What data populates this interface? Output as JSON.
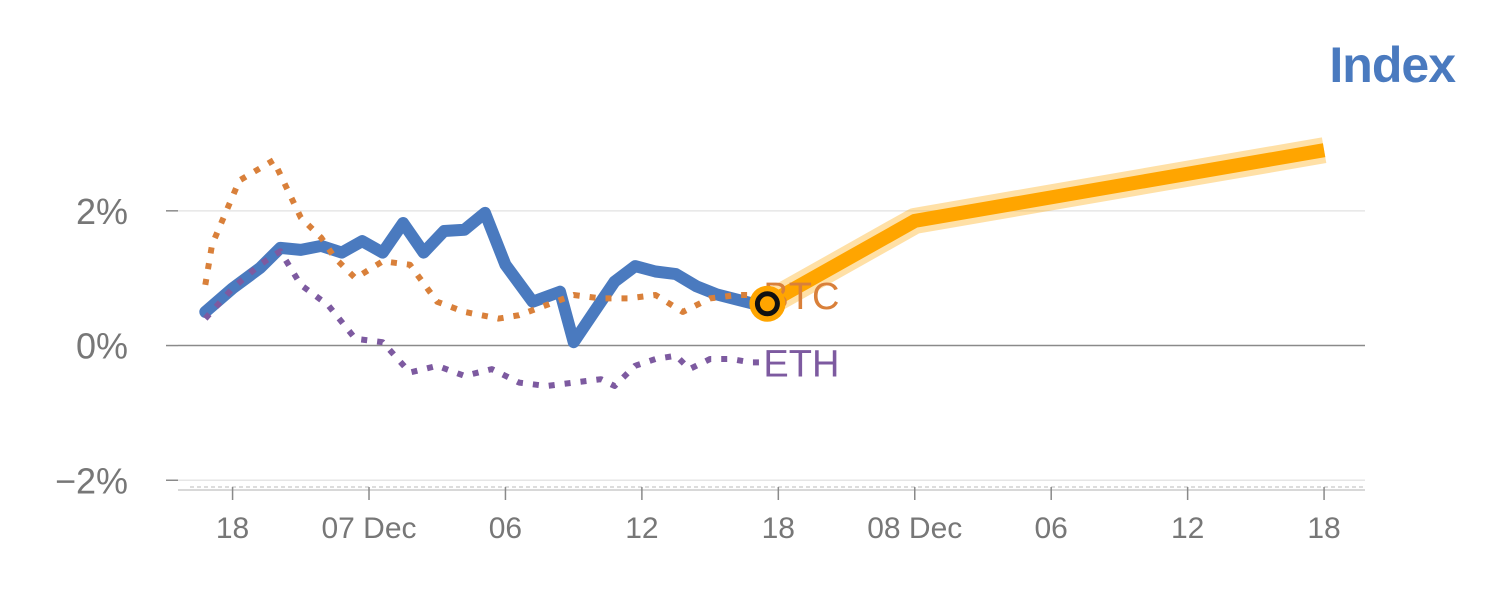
{
  "title": "Index",
  "chart_data": {
    "type": "line",
    "x_tick_labels": [
      "18",
      "07 Dec",
      "06",
      "12",
      "18",
      "08 Dec",
      "06",
      "12",
      "18"
    ],
    "y_tick_labels": [
      "2%",
      "0%",
      "−2%"
    ],
    "y_ticks": [
      2,
      0,
      -2
    ],
    "ylim": [
      -2.1,
      3.2
    ],
    "x_range": [
      -0.4,
      8.3
    ],
    "grid": true,
    "series": [
      {
        "color": "#4a7abf",
        "style": "solid",
        "x": [
          -0.2,
          0.0,
          0.2,
          0.35,
          0.5,
          0.65,
          0.8,
          0.95,
          1.1,
          1.25,
          1.4,
          1.55,
          1.7,
          1.85,
          2.0,
          2.2,
          2.4,
          2.5,
          2.65,
          2.8,
          2.95,
          3.1,
          3.25,
          3.4,
          3.55,
          3.7,
          3.82,
          3.92
        ],
        "values": [
          0.5,
          0.85,
          1.15,
          1.45,
          1.42,
          1.48,
          1.38,
          1.55,
          1.38,
          1.82,
          1.38,
          1.7,
          1.72,
          1.97,
          1.2,
          0.65,
          0.8,
          0.05,
          0.5,
          0.95,
          1.18,
          1.1,
          1.06,
          0.88,
          0.76,
          0.68,
          0.62,
          0.62
        ]
      },
      {
        "name": "BTC",
        "color": "#d9803a",
        "style": "dotted",
        "x": [
          -0.2,
          -0.15,
          0.05,
          0.3,
          0.5,
          0.65,
          0.75,
          0.9,
          1.1,
          1.3,
          1.5,
          1.7,
          1.95,
          2.1,
          2.3,
          2.5,
          2.7,
          2.9,
          3.1,
          3.3,
          3.5,
          3.7,
          3.92
        ],
        "values": [
          0.9,
          1.5,
          2.45,
          2.75,
          1.9,
          1.6,
          1.3,
          1.0,
          1.25,
          1.2,
          0.65,
          0.5,
          0.4,
          0.45,
          0.6,
          0.75,
          0.7,
          0.7,
          0.75,
          0.5,
          0.7,
          0.75,
          0.75
        ]
      },
      {
        "name": "ETH",
        "color": "#7d5aa0",
        "style": "dotted",
        "x": [
          -0.2,
          0.0,
          0.2,
          0.35,
          0.5,
          0.7,
          0.9,
          1.1,
          1.3,
          1.5,
          1.7,
          1.9,
          2.1,
          2.3,
          2.5,
          2.7,
          2.8,
          2.95,
          3.1,
          3.25,
          3.35,
          3.5,
          3.65,
          3.8,
          3.92
        ],
        "values": [
          0.4,
          0.85,
          1.2,
          1.4,
          0.9,
          0.6,
          0.1,
          0.05,
          -0.4,
          -0.3,
          -0.45,
          -0.35,
          -0.55,
          -0.6,
          -0.55,
          -0.5,
          -0.6,
          -0.3,
          -0.2,
          -0.15,
          -0.35,
          -0.2,
          -0.2,
          -0.25,
          -0.25
        ]
      },
      {
        "color": "#ffa500",
        "style": "projection",
        "x": [
          3.92,
          5.0,
          8.0
        ],
        "values": [
          0.62,
          1.85,
          2.9
        ]
      }
    ],
    "marker": {
      "x": 3.92,
      "value": 0.62
    }
  }
}
